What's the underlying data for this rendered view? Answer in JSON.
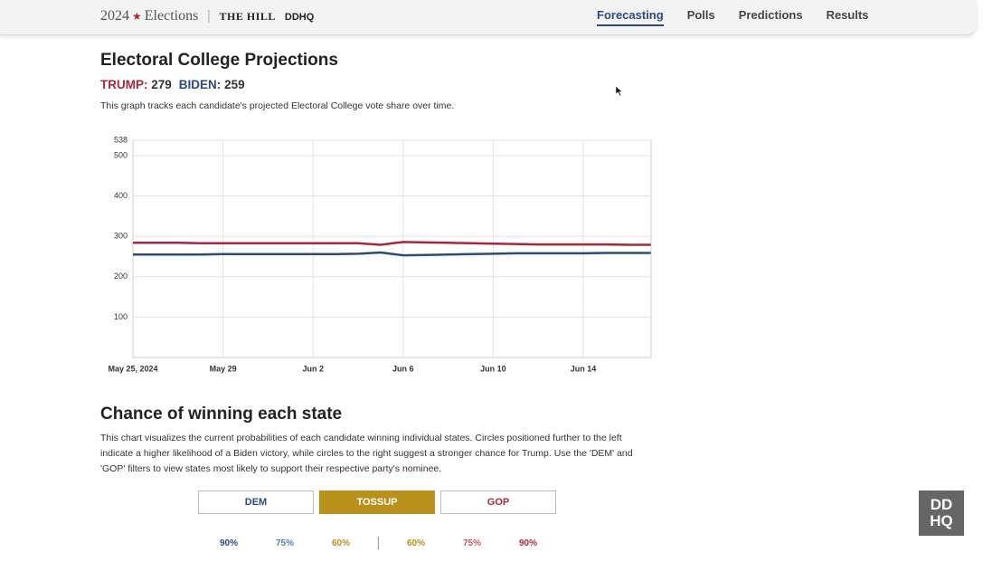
{
  "header": {
    "brand": "2024",
    "star": "★",
    "brand_rest": "Elections",
    "partner": "THE HILL",
    "partner2": "DDHQ"
  },
  "nav": [
    {
      "label": "Forecasting",
      "active": true
    },
    {
      "label": "Polls",
      "active": false
    },
    {
      "label": "Predictions",
      "active": false
    },
    {
      "label": "Results",
      "active": false
    }
  ],
  "projections": {
    "title": "Electoral College Projections",
    "trump_ev": 279,
    "biden_ev": 259,
    "description": "This graph tracks each candidate's projected Electoral College vote share over time."
  },
  "chart_data": {
    "type": "line",
    "categories": [
      "May 25, 2024",
      null,
      null,
      null,
      "May 29",
      null,
      null,
      null,
      "Jun 2",
      null,
      null,
      null,
      "Jun 6",
      null,
      null,
      null,
      "Jun 10",
      null,
      null,
      null,
      "Jun 14",
      null,
      null,
      null
    ],
    "series": [
      {
        "name": "TRUMP:",
        "color": "#a8283a",
        "values": [
          284,
          284,
          284,
          283,
          283,
          283,
          283,
          283,
          283,
          283,
          283,
          279,
          286,
          285,
          284,
          283,
          282,
          281,
          280,
          280,
          280,
          280,
          279,
          279
        ]
      },
      {
        "name": "BIDEN:",
        "color": "#2c4a7e",
        "values": [
          255,
          255,
          255,
          255,
          256,
          256,
          256,
          256,
          256,
          256,
          257,
          260,
          253,
          254,
          255,
          256,
          257,
          258,
          258,
          258,
          258,
          259,
          259,
          259
        ]
      }
    ],
    "ylim": [
      0,
      538
    ],
    "yticks": [
      100,
      200,
      300,
      400,
      500,
      538
    ],
    "grid": true
  },
  "states": {
    "title": "Chance of winning each state",
    "description": "This chart visualizes the current probabilities of each candidate winning individual states. Circles positioned further to the left indicate a higher likelihood of a Biden victory, while circles to the right suggest a stronger chance for Trump. Use the 'DEM' and 'GOP' filters to view states most likely to support their respective party's nominee.",
    "filters": [
      {
        "label": "DEM",
        "active": false,
        "color": "#2c4a7e"
      },
      {
        "label": "TOSSUP",
        "active": true,
        "color": "#b8901a"
      },
      {
        "label": "GOP",
        "active": false,
        "color": "#a8283a"
      }
    ],
    "scale_dem": [
      {
        "value": 90,
        "label": "90%",
        "color": "#2c4a7e"
      },
      {
        "value": 75,
        "label": "75%",
        "color": "#5a7db5"
      },
      {
        "value": 60,
        "label": "60%",
        "color": "#b8901a"
      }
    ],
    "scale_rep": [
      {
        "value": 60,
        "label": "60%",
        "color": "#b8901a"
      },
      {
        "value": 75,
        "label": "75%",
        "color": "#c9595f"
      },
      {
        "value": 90,
        "label": "90%",
        "color": "#a8283a"
      }
    ]
  },
  "badge": {
    "top": "DD",
    "bottom": "HQ"
  }
}
